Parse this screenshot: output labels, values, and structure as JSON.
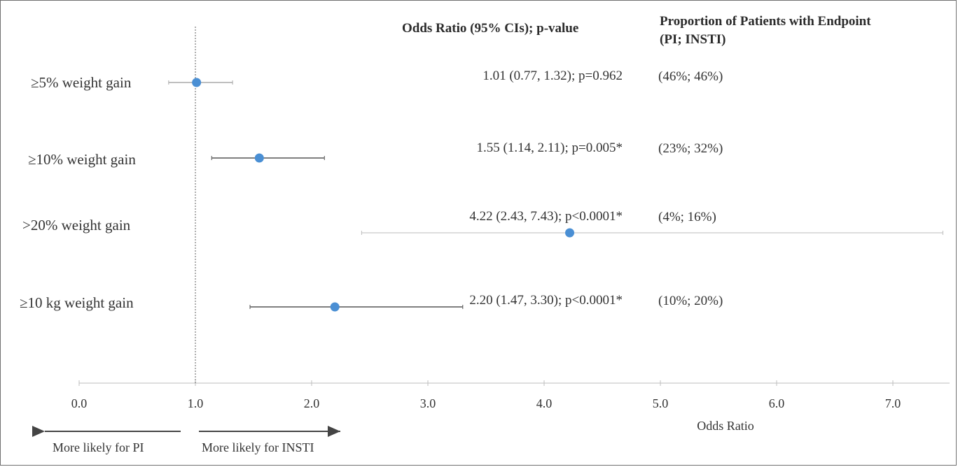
{
  "chart_data": {
    "type": "forest",
    "column_headers": {
      "or": "Odds Ratio (95% CIs); p-value",
      "prop_line1": "Proportion of Patients with Endpoint",
      "prop_line2": "(PI; INSTI)"
    },
    "rows": [
      {
        "label": "≥5% weight gain",
        "or": 1.01,
        "lower": 0.77,
        "upper": 1.32,
        "ci_text": "1.01 (0.77, 1.32); p=0.962",
        "prop_text": "(46%; 46%)"
      },
      {
        "label": "≥10% weight gain",
        "or": 1.55,
        "lower": 1.14,
        "upper": 2.11,
        "ci_text": "1.55 (1.14, 2.11); p=0.005*",
        "prop_text": "(23%; 32%)"
      },
      {
        "label": ">20% weight gain",
        "or": 4.22,
        "lower": 2.43,
        "upper": 7.43,
        "ci_text": "4.22 (2.43, 7.43); p<0.0001*",
        "prop_text": "(4%; 16%)"
      },
      {
        "label": "≥10 kg weight gain",
        "or": 2.2,
        "lower": 1.47,
        "upper": 3.3,
        "ci_text": "2.20 (1.47, 3.30); p<0.0001*",
        "prop_text": "(10%; 20%)"
      }
    ],
    "reference_line": 1.0,
    "xlim": [
      0,
      7.5
    ],
    "xticks": [
      "0.0",
      "1.0",
      "2.0",
      "3.0",
      "4.0",
      "5.0",
      "6.0",
      "7.0"
    ],
    "xlabel": "Odds Ratio",
    "direction_labels": {
      "left": "More likely for PI",
      "right": "More likely for INSTI"
    },
    "point_color": "#4a8fd4",
    "line_color": "#555555"
  }
}
